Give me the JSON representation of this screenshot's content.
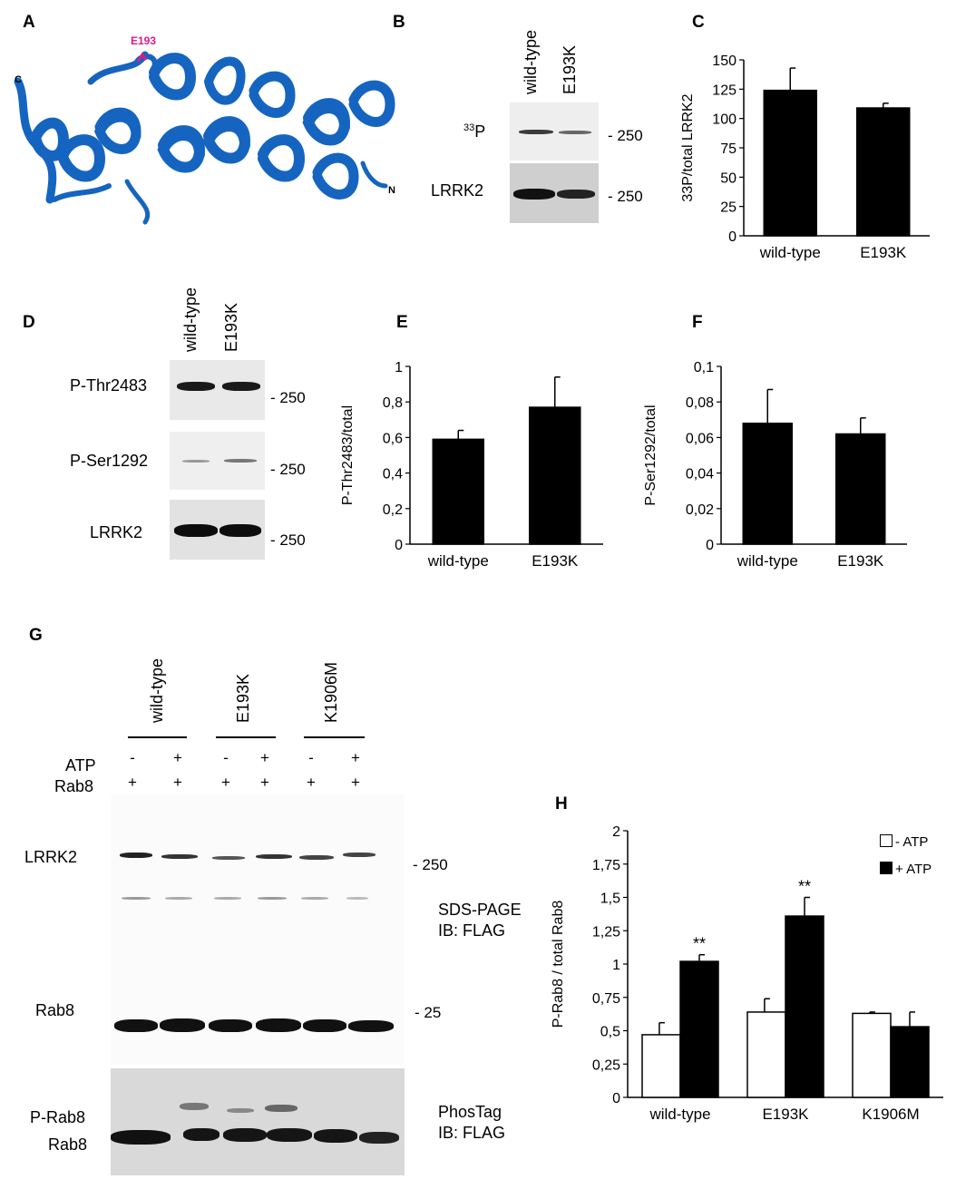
{
  "panels": {
    "A": "A",
    "B": "B",
    "C": "C",
    "D": "D",
    "E": "E",
    "F": "F",
    "G": "G",
    "H": "H"
  },
  "structure": {
    "residue": "E193",
    "c_term": "C",
    "n_term": "N",
    "colors": {
      "helix": "#1565c0",
      "residue": "#d81b8c"
    }
  },
  "blot_b": {
    "lanes": [
      "wild-type",
      "E193K"
    ],
    "rows": [
      "33P",
      "LRRK2"
    ],
    "mw": [
      "- 250",
      "- 250"
    ]
  },
  "blot_d": {
    "lanes": [
      "wild-type",
      "E193K"
    ],
    "rows": [
      "P-Thr2483",
      "P-Ser1292",
      "LRRK2"
    ],
    "mw": [
      "- 250",
      "- 250",
      "- 250"
    ]
  },
  "blot_g": {
    "lanes": [
      "wild-type",
      "E193K",
      "K1906M"
    ],
    "atp_label": "ATP",
    "rab8_label": "Rab8",
    "atp_signs": [
      "-",
      "+",
      "-",
      "+",
      "-",
      "+"
    ],
    "rab8_signs": [
      "+",
      "+",
      "+",
      "+",
      "+",
      "+"
    ],
    "row_lrrk2": "LRRK2",
    "row_rab8": "Rab8",
    "row_prab8": "P-Rab8",
    "row_rab8b": "Rab8",
    "mw_250": "- 250",
    "mw_25": "- 25",
    "sds_line1": "SDS-PAGE",
    "sds_line2": "IB: FLAG",
    "phos_line1": "PhosTag",
    "phos_line2": "IB: FLAG"
  },
  "chart_data": [
    {
      "panel": "C",
      "type": "bar",
      "categories": [
        "wild-type",
        "E193K"
      ],
      "values": [
        124,
        109
      ],
      "errors": [
        19,
        4
      ],
      "ylabel": "33P/total LRRK2",
      "ylim": [
        0,
        150
      ],
      "yticks": [
        "0",
        "25",
        "50",
        "75",
        "100",
        "125",
        "150"
      ]
    },
    {
      "panel": "E",
      "type": "bar",
      "categories": [
        "wild-type",
        "E193K"
      ],
      "values": [
        0.59,
        0.77
      ],
      "errors": [
        0.05,
        0.17
      ],
      "ylabel": "P-Thr2483/total",
      "ylim": [
        0,
        1
      ],
      "yticks": [
        "0",
        "0,2",
        "0,4",
        "0,6",
        "0,8",
        "1"
      ]
    },
    {
      "panel": "F",
      "type": "bar",
      "categories": [
        "wild-type",
        "E193K"
      ],
      "values": [
        0.068,
        0.062
      ],
      "errors": [
        0.019,
        0.009
      ],
      "ylabel": "P-Ser1292/total",
      "ylim": [
        0,
        0.1
      ],
      "yticks": [
        "0",
        "0,02",
        "0,04",
        "0,06",
        "0,08",
        "0,1"
      ]
    },
    {
      "panel": "H",
      "type": "bar",
      "categories": [
        "wild-type",
        "E193K",
        "K1906M"
      ],
      "series": [
        {
          "name": "- ATP",
          "values": [
            0.47,
            0.64,
            0.63
          ],
          "errors": [
            0.09,
            0.1,
            0.01
          ]
        },
        {
          "name": "+ ATP",
          "values": [
            1.02,
            1.36,
            0.53
          ],
          "errors": [
            0.05,
            0.14,
            0.11
          ]
        }
      ],
      "significance": [
        "**",
        "**",
        ""
      ],
      "ylabel": "P-Rab8 / total Rab8",
      "ylim": [
        0,
        2
      ],
      "yticks": [
        "0",
        "0,25",
        "0,5",
        "0,75",
        "1",
        "1,25",
        "1,5",
        "1,75",
        "2"
      ]
    }
  ]
}
